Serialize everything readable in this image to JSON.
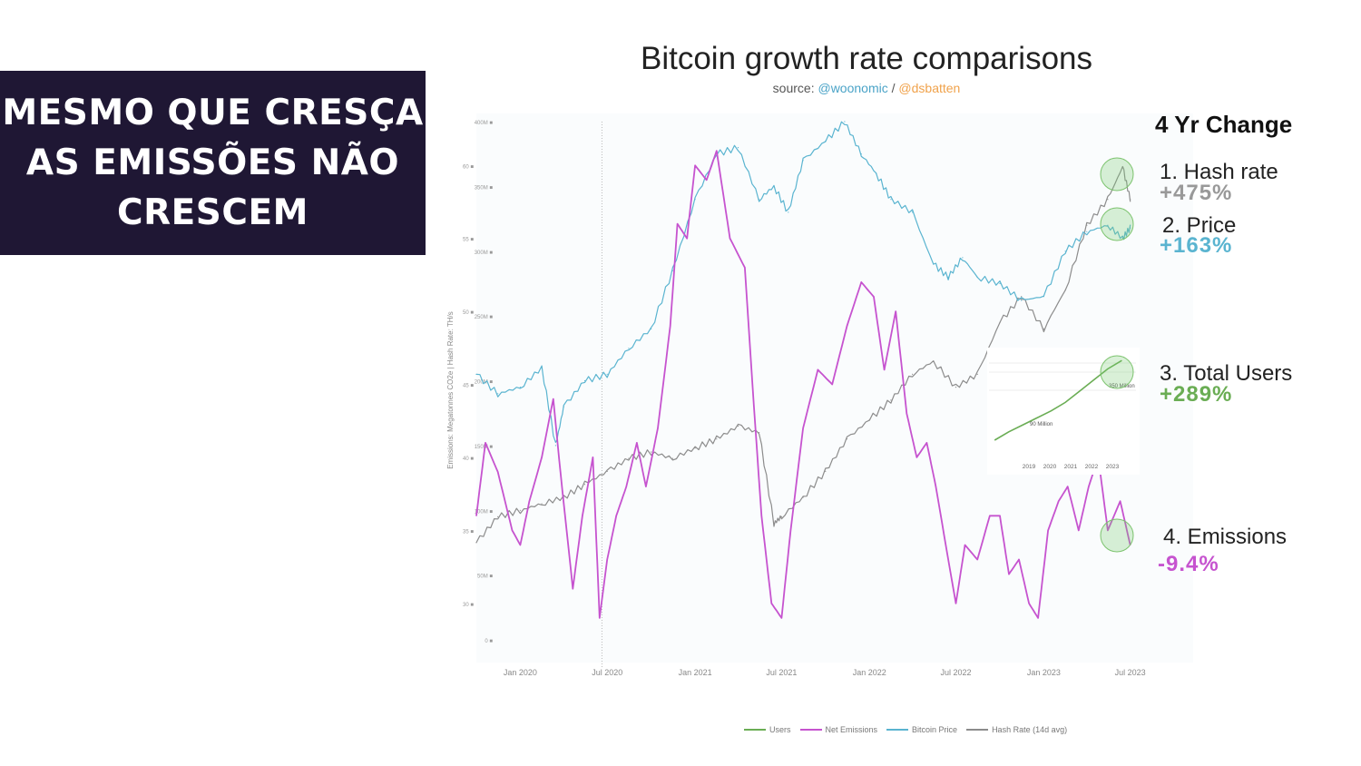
{
  "banner": {
    "line1": "MESMO QUE CRESÇA",
    "line2": "AS EMISSÕES NÃO",
    "line3": "CRESCEM"
  },
  "chart_data": {
    "type": "line",
    "title": "Bitcoin growth rate comparisons",
    "subtitle_prefix": "source: ",
    "subtitle_woonomic": "@woonomic",
    "subtitle_sep": " / ",
    "subtitle_dsbatten": "@dsbatten",
    "ylabel": "Emissions: Megatonnes CO2e  |  Hash Rate: TH/s",
    "x_tick_labels": [
      "Jan 2020",
      "Jul 2020",
      "Jan 2021",
      "Jul 2021",
      "Jan 2022",
      "Jul 2022",
      "Jan 2023",
      "Jul 2023"
    ],
    "x_tick_dates": [
      "2020-01-01",
      "2020-07-01",
      "2021-01-01",
      "2021-07-01",
      "2022-01-01",
      "2022-07-01",
      "2023-01-01",
      "2023-07-01"
    ],
    "xlim": [
      "2019-10-01",
      "2023-08-01"
    ],
    "emissions_axis": {
      "label": "Emissions (Mt CO2e)",
      "ticks": [
        30,
        35,
        40,
        45,
        50,
        55,
        60
      ],
      "tick_labels": [
        "30 ■",
        "35 ■",
        "40 ■",
        "45 ■",
        "50 ■",
        "55 ■",
        "60 ■"
      ],
      "ylim": [
        27.5,
        63
      ]
    },
    "hashrate_axis": {
      "label": "Hash Rate (TH/s)",
      "ticks": [
        0,
        50,
        100,
        150,
        200,
        250,
        300,
        350,
        400
      ],
      "tick_labels": [
        "0 ■",
        "50M ■",
        "100M ■",
        "150M ■",
        "200M ■",
        "250M ■",
        "300M ■",
        "350M ■",
        "400M ■"
      ],
      "ylim": [
        0,
        400
      ]
    },
    "series": [
      {
        "name": "Hash Rate (14d avg)",
        "color": "#8c8c8c",
        "axis": "hashrate",
        "x": [
          "2019-10-01",
          "2019-11-15",
          "2020-01-01",
          "2020-02-15",
          "2020-04-01",
          "2020-05-15",
          "2020-07-01",
          "2020-08-15",
          "2020-10-01",
          "2020-11-15",
          "2021-01-01",
          "2021-02-15",
          "2021-04-01",
          "2021-05-15",
          "2021-06-15",
          "2021-07-01",
          "2021-08-15",
          "2021-10-01",
          "2021-11-15",
          "2022-01-01",
          "2022-02-15",
          "2022-04-01",
          "2022-05-15",
          "2022-07-01",
          "2022-08-15",
          "2022-10-01",
          "2022-11-15",
          "2023-01-01",
          "2023-02-15",
          "2023-04-01",
          "2023-05-15",
          "2023-06-15",
          "2023-07-01"
        ],
        "values": [
          75,
          95,
          100,
          105,
          110,
          120,
          130,
          140,
          145,
          140,
          148,
          155,
          165,
          160,
          90,
          95,
          110,
          130,
          155,
          170,
          185,
          205,
          215,
          195,
          205,
          245,
          265,
          240,
          270,
          320,
          340,
          365,
          340
        ]
      },
      {
        "name": "Bitcoin Price",
        "color": "#5ab4d0",
        "axis": "hashrate",
        "x": [
          "2019-10-01",
          "2019-11-15",
          "2020-01-01",
          "2020-02-15",
          "2020-03-15",
          "2020-04-01",
          "2020-05-15",
          "2020-07-01",
          "2020-08-15",
          "2020-10-01",
          "2020-11-15",
          "2021-01-01",
          "2021-02-15",
          "2021-04-01",
          "2021-05-15",
          "2021-06-15",
          "2021-07-15",
          "2021-08-15",
          "2021-10-01",
          "2021-11-10",
          "2021-12-15",
          "2022-01-15",
          "2022-02-15",
          "2022-04-01",
          "2022-05-15",
          "2022-06-15",
          "2022-07-15",
          "2022-08-15",
          "2022-10-01",
          "2022-11-15",
          "2023-01-01",
          "2023-02-15",
          "2023-04-01",
          "2023-05-15",
          "2023-06-15",
          "2023-07-01"
        ],
        "values": [
          205,
          190,
          195,
          210,
          150,
          180,
          200,
          205,
          225,
          240,
          285,
          340,
          375,
          380,
          340,
          350,
          330,
          370,
          385,
          400,
          375,
          360,
          340,
          330,
          290,
          280,
          295,
          280,
          275,
          262,
          265,
          300,
          315,
          320,
          310,
          318
        ]
      },
      {
        "name": "Net Emissions",
        "color": "#c653cf",
        "axis": "emissions",
        "x": [
          "2019-10-01",
          "2019-10-20",
          "2019-11-15",
          "2019-12-15",
          "2020-01-01",
          "2020-01-20",
          "2020-02-15",
          "2020-03-10",
          "2020-03-25",
          "2020-04-20",
          "2020-05-10",
          "2020-06-01",
          "2020-06-15",
          "2020-07-01",
          "2020-07-20",
          "2020-08-10",
          "2020-09-01",
          "2020-09-20",
          "2020-10-15",
          "2020-11-10",
          "2020-11-25",
          "2020-12-15",
          "2021-01-01",
          "2021-01-25",
          "2021-02-15",
          "2021-03-15",
          "2021-04-15",
          "2021-05-01",
          "2021-05-20",
          "2021-06-10",
          "2021-07-01",
          "2021-07-20",
          "2021-08-15",
          "2021-09-15",
          "2021-10-15",
          "2021-11-15",
          "2021-12-15",
          "2022-01-10",
          "2022-02-01",
          "2022-02-25",
          "2022-03-20",
          "2022-04-10",
          "2022-05-01",
          "2022-05-20",
          "2022-06-15",
          "2022-07-01",
          "2022-07-20",
          "2022-08-15",
          "2022-09-10",
          "2022-10-01",
          "2022-10-20",
          "2022-11-10",
          "2022-12-01",
          "2022-12-20",
          "2023-01-10",
          "2023-02-01",
          "2023-02-20",
          "2023-03-15",
          "2023-04-05",
          "2023-04-25",
          "2023-05-15",
          "2023-06-10",
          "2023-07-01"
        ],
        "values": [
          36,
          41,
          39,
          35,
          34,
          37,
          40,
          44,
          39,
          31,
          36,
          40,
          29,
          33,
          36,
          38,
          41,
          38,
          42,
          49,
          56,
          55,
          60,
          59,
          61,
          55,
          53,
          45,
          36,
          30,
          29,
          35,
          42,
          46,
          45,
          49,
          52,
          51,
          46,
          50,
          43,
          40,
          41,
          38,
          33,
          30,
          34,
          33,
          36,
          36,
          32,
          33,
          30,
          29,
          35,
          37,
          38,
          35,
          38,
          40,
          35,
          37,
          34
        ]
      }
    ],
    "legend": [
      {
        "name": "Users",
        "color": "#6aad54"
      },
      {
        "name": "Net Emissions",
        "color": "#c653cf"
      },
      {
        "name": "Bitcoin Price",
        "color": "#5ab4d0"
      },
      {
        "name": "Hash Rate (14d avg)",
        "color": "#8c8c8c"
      }
    ],
    "inset": {
      "type": "line",
      "series_name": "Users",
      "color": "#6aad54",
      "x_tick_labels": [
        "2019",
        "2020",
        "2021",
        "2022",
        "2023"
      ],
      "x": [
        2018.5,
        2019,
        2019.5,
        2020,
        2020.5,
        2021,
        2021.5,
        2022,
        2022.5,
        2023
      ],
      "values": [
        65,
        95,
        120,
        145,
        170,
        200,
        240,
        280,
        320,
        350
      ],
      "annotation_high": "350 Million",
      "annotation_low": "90 Million"
    }
  },
  "changes": {
    "heading": "4 Yr Change",
    "items": [
      {
        "label": "1. Hash rate",
        "value": "+475%",
        "color": "#999999"
      },
      {
        "label": "2. Price",
        "value": "+163%",
        "color": "#5ab4d0"
      },
      {
        "label": "3. Total Users",
        "value": "+289%",
        "color": "#6aad54"
      },
      {
        "label": "4. Emissions",
        "value": "-9.4%",
        "color": "#c653cf"
      }
    ]
  }
}
